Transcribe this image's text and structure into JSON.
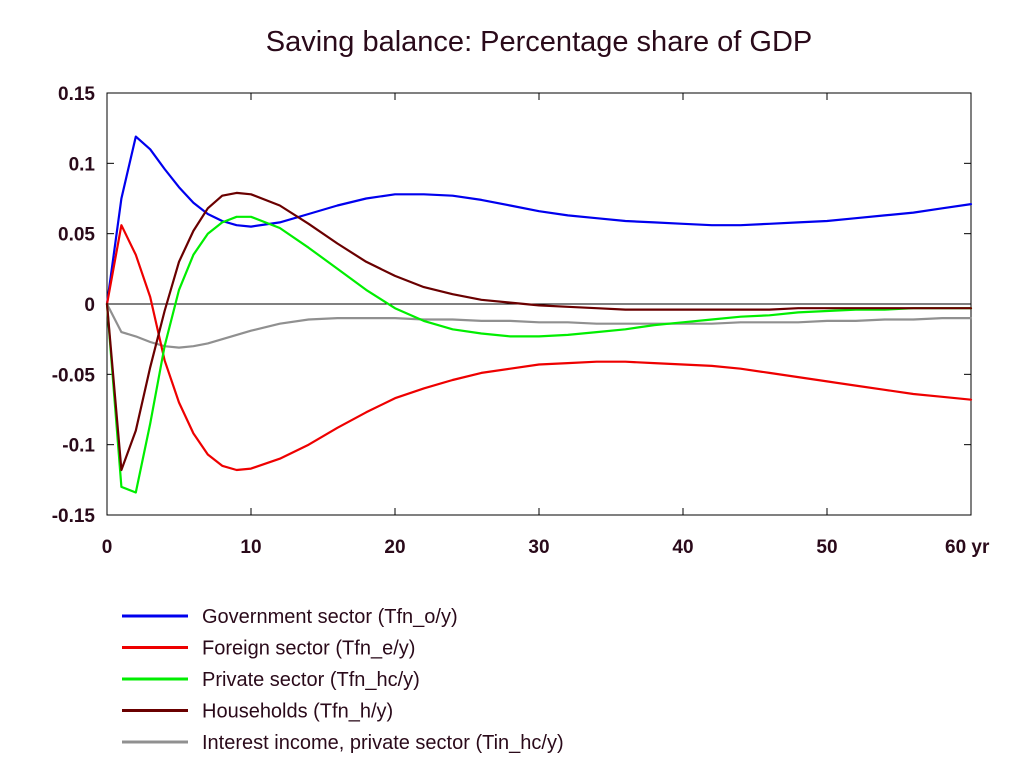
{
  "chart_data": {
    "type": "line",
    "title": "Saving balance: Percentage share of GDP",
    "xlabel": "",
    "ylabel": "",
    "xlim": [
      0,
      60
    ],
    "ylim": [
      -0.15,
      0.15
    ],
    "x_ticks": [
      0,
      10,
      20,
      30,
      40,
      50,
      60
    ],
    "x_tick_labels": [
      "0",
      "10",
      "20",
      "30",
      "40",
      "50",
      "60 yr"
    ],
    "y_ticks": [
      0.15,
      0.1,
      0.05,
      0,
      -0.05,
      -0.1,
      -0.15
    ],
    "y_tick_labels": [
      "0.15",
      "0.1",
      "0.05",
      "0",
      "-0.05",
      "-0.1",
      "-0.15"
    ],
    "zero_line": true,
    "grid": false,
    "legend_position": "bottom",
    "series": [
      {
        "name": "Government sector (Tfn_o/y)",
        "color": "#0000ee",
        "points": [
          [
            0,
            0
          ],
          [
            1,
            0.075
          ],
          [
            2,
            0.119
          ],
          [
            3,
            0.11
          ],
          [
            4,
            0.096
          ],
          [
            5,
            0.083
          ],
          [
            6,
            0.072
          ],
          [
            7,
            0.064
          ],
          [
            8,
            0.059
          ],
          [
            9,
            0.056
          ],
          [
            10,
            0.055
          ],
          [
            12,
            0.058
          ],
          [
            14,
            0.064
          ],
          [
            16,
            0.07
          ],
          [
            18,
            0.075
          ],
          [
            20,
            0.078
          ],
          [
            22,
            0.078
          ],
          [
            24,
            0.077
          ],
          [
            26,
            0.074
          ],
          [
            28,
            0.07
          ],
          [
            30,
            0.066
          ],
          [
            32,
            0.063
          ],
          [
            34,
            0.061
          ],
          [
            36,
            0.059
          ],
          [
            38,
            0.058
          ],
          [
            40,
            0.057
          ],
          [
            42,
            0.056
          ],
          [
            44,
            0.056
          ],
          [
            46,
            0.057
          ],
          [
            48,
            0.058
          ],
          [
            50,
            0.059
          ],
          [
            52,
            0.061
          ],
          [
            54,
            0.063
          ],
          [
            56,
            0.065
          ],
          [
            58,
            0.068
          ],
          [
            60,
            0.071
          ]
        ]
      },
      {
        "name": "Foreign sector (Tfn_e/y)",
        "color": "#ee0000",
        "points": [
          [
            0,
            0
          ],
          [
            1,
            0.056
          ],
          [
            2,
            0.035
          ],
          [
            3,
            0.005
          ],
          [
            4,
            -0.04
          ],
          [
            5,
            -0.07
          ],
          [
            6,
            -0.092
          ],
          [
            7,
            -0.107
          ],
          [
            8,
            -0.115
          ],
          [
            9,
            -0.118
          ],
          [
            10,
            -0.117
          ],
          [
            12,
            -0.11
          ],
          [
            14,
            -0.1
          ],
          [
            16,
            -0.088
          ],
          [
            18,
            -0.077
          ],
          [
            20,
            -0.067
          ],
          [
            22,
            -0.06
          ],
          [
            24,
            -0.054
          ],
          [
            26,
            -0.049
          ],
          [
            28,
            -0.046
          ],
          [
            30,
            -0.043
          ],
          [
            32,
            -0.042
          ],
          [
            34,
            -0.041
          ],
          [
            36,
            -0.041
          ],
          [
            38,
            -0.042
          ],
          [
            40,
            -0.043
          ],
          [
            42,
            -0.044
          ],
          [
            44,
            -0.046
          ],
          [
            46,
            -0.049
          ],
          [
            48,
            -0.052
          ],
          [
            50,
            -0.055
          ],
          [
            52,
            -0.058
          ],
          [
            54,
            -0.061
          ],
          [
            56,
            -0.064
          ],
          [
            58,
            -0.066
          ],
          [
            60,
            -0.068
          ]
        ]
      },
      {
        "name": "Private sector (Tfn_hc/y)",
        "color": "#00ee00",
        "points": [
          [
            0,
            0
          ],
          [
            1,
            -0.13
          ],
          [
            2,
            -0.134
          ],
          [
            3,
            -0.085
          ],
          [
            4,
            -0.03
          ],
          [
            5,
            0.01
          ],
          [
            6,
            0.035
          ],
          [
            7,
            0.05
          ],
          [
            8,
            0.058
          ],
          [
            9,
            0.062
          ],
          [
            10,
            0.062
          ],
          [
            12,
            0.054
          ],
          [
            14,
            0.04
          ],
          [
            16,
            0.025
          ],
          [
            18,
            0.01
          ],
          [
            20,
            -0.003
          ],
          [
            22,
            -0.012
          ],
          [
            24,
            -0.018
          ],
          [
            26,
            -0.021
          ],
          [
            28,
            -0.023
          ],
          [
            30,
            -0.023
          ],
          [
            32,
            -0.022
          ],
          [
            34,
            -0.02
          ],
          [
            36,
            -0.018
          ],
          [
            38,
            -0.015
          ],
          [
            40,
            -0.013
          ],
          [
            42,
            -0.011
          ],
          [
            44,
            -0.009
          ],
          [
            46,
            -0.008
          ],
          [
            48,
            -0.006
          ],
          [
            50,
            -0.005
          ],
          [
            52,
            -0.004
          ],
          [
            54,
            -0.004
          ],
          [
            56,
            -0.003
          ],
          [
            58,
            -0.003
          ],
          [
            60,
            -0.003
          ]
        ]
      },
      {
        "name": "Households (Tfn_h/y)",
        "color": "#6a0000",
        "points": [
          [
            0,
            0
          ],
          [
            1,
            -0.118
          ],
          [
            2,
            -0.09
          ],
          [
            3,
            -0.045
          ],
          [
            4,
            -0.005
          ],
          [
            5,
            0.03
          ],
          [
            6,
            0.052
          ],
          [
            7,
            0.068
          ],
          [
            8,
            0.077
          ],
          [
            9,
            0.079
          ],
          [
            10,
            0.078
          ],
          [
            12,
            0.07
          ],
          [
            14,
            0.057
          ],
          [
            16,
            0.043
          ],
          [
            18,
            0.03
          ],
          [
            20,
            0.02
          ],
          [
            22,
            0.012
          ],
          [
            24,
            0.007
          ],
          [
            26,
            0.003
          ],
          [
            28,
            0.001
          ],
          [
            30,
            -0.001
          ],
          [
            32,
            -0.002
          ],
          [
            34,
            -0.003
          ],
          [
            36,
            -0.004
          ],
          [
            38,
            -0.004
          ],
          [
            40,
            -0.004
          ],
          [
            42,
            -0.004
          ],
          [
            44,
            -0.004
          ],
          [
            46,
            -0.004
          ],
          [
            48,
            -0.003
          ],
          [
            50,
            -0.003
          ],
          [
            52,
            -0.003
          ],
          [
            54,
            -0.003
          ],
          [
            56,
            -0.003
          ],
          [
            58,
            -0.003
          ],
          [
            60,
            -0.003
          ]
        ]
      },
      {
        "name": "Interest income, private sector (Tin_hc/y)",
        "color": "#909090",
        "points": [
          [
            0,
            0
          ],
          [
            1,
            -0.02
          ],
          [
            2,
            -0.023
          ],
          [
            3,
            -0.027
          ],
          [
            4,
            -0.03
          ],
          [
            5,
            -0.031
          ],
          [
            6,
            -0.03
          ],
          [
            7,
            -0.028
          ],
          [
            8,
            -0.025
          ],
          [
            9,
            -0.022
          ],
          [
            10,
            -0.019
          ],
          [
            12,
            -0.014
          ],
          [
            14,
            -0.011
          ],
          [
            16,
            -0.01
          ],
          [
            18,
            -0.01
          ],
          [
            20,
            -0.01
          ],
          [
            22,
            -0.011
          ],
          [
            24,
            -0.011
          ],
          [
            26,
            -0.012
          ],
          [
            28,
            -0.012
          ],
          [
            30,
            -0.013
          ],
          [
            32,
            -0.013
          ],
          [
            34,
            -0.014
          ],
          [
            36,
            -0.014
          ],
          [
            38,
            -0.014
          ],
          [
            40,
            -0.014
          ],
          [
            42,
            -0.014
          ],
          [
            44,
            -0.013
          ],
          [
            46,
            -0.013
          ],
          [
            48,
            -0.013
          ],
          [
            50,
            -0.012
          ],
          [
            52,
            -0.012
          ],
          [
            54,
            -0.011
          ],
          [
            56,
            -0.011
          ],
          [
            58,
            -0.01
          ],
          [
            60,
            -0.01
          ]
        ]
      }
    ]
  }
}
